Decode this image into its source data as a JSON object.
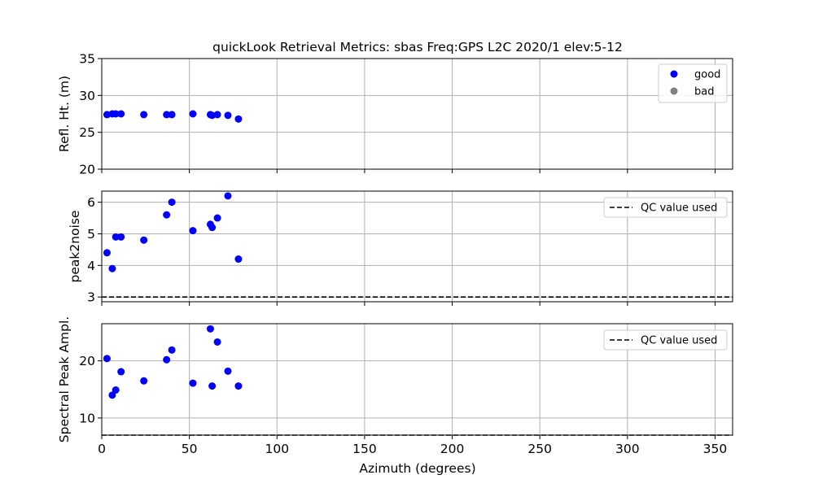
{
  "colors": {
    "good": "#0000ff",
    "bad": "#808080",
    "grid": "#b0b0b0",
    "qc_line": "#000000"
  },
  "chart_data": {
    "type": "scatter",
    "title": "quickLook Retrieval Metrics: sbas Freq:GPS L2C 2020/1  elev:5-12",
    "xlabel": "Azimuth (degrees)",
    "xlim": [
      0,
      360
    ],
    "xticks": [
      0,
      50,
      100,
      150,
      200,
      250,
      300,
      350
    ],
    "azimuth": [
      3,
      6,
      8,
      11,
      24,
      37,
      40,
      52,
      62,
      63,
      66,
      72,
      78
    ],
    "panels": [
      {
        "id": "refl",
        "ylabel": "Refl. Ht. (m)",
        "ylim": [
          20,
          35
        ],
        "yticks": [
          20,
          25,
          30,
          35
        ],
        "legend": {
          "position": "top-right",
          "entries": [
            "good",
            "bad"
          ]
        },
        "series": [
          {
            "name": "good",
            "values": [
              27.4,
              27.5,
              27.5,
              27.5,
              27.4,
              27.4,
              27.4,
              27.5,
              27.4,
              27.3,
              27.4,
              27.3,
              26.8
            ]
          },
          {
            "name": "bad",
            "values": []
          }
        ]
      },
      {
        "id": "p2n",
        "ylabel": "peak2noise",
        "ylim": [
          2.85,
          6.35
        ],
        "yticks": [
          3,
          4,
          5,
          6
        ],
        "qc_value": 3.0,
        "legend": {
          "position": "top-right",
          "entries": [
            "QC value used"
          ]
        },
        "series": [
          {
            "name": "good",
            "values": [
              4.4,
              3.9,
              4.9,
              4.9,
              4.8,
              5.6,
              6.0,
              5.1,
              5.3,
              5.2,
              5.5,
              6.2,
              4.2
            ]
          }
        ]
      },
      {
        "id": "amp",
        "ylabel": "Spectral Peak Ampl.",
        "ylim": [
          7.0,
          26.5
        ],
        "yticks": [
          10,
          20
        ],
        "qc_value": 7.0,
        "legend": {
          "position": "top-right",
          "entries": [
            "QC value used"
          ]
        },
        "series": [
          {
            "name": "good",
            "values": [
              20.4,
              14.0,
              14.9,
              18.1,
              16.5,
              20.2,
              21.9,
              16.1,
              25.6,
              15.6,
              23.3,
              18.2,
              15.6
            ]
          }
        ]
      }
    ]
  }
}
